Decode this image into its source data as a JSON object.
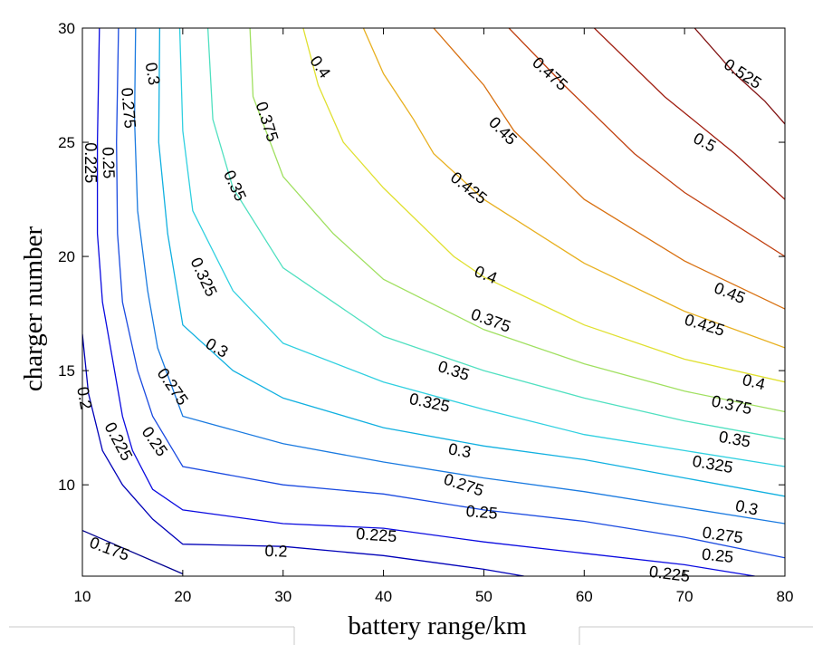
{
  "chart_data": {
    "type": "contour",
    "title": "",
    "xlabel": "battery range/km",
    "ylabel": "charger number",
    "xlim": [
      10,
      80
    ],
    "ylim": [
      6,
      30
    ],
    "xticks": [
      "10",
      "20",
      "30",
      "40",
      "50",
      "60",
      "70",
      "80"
    ],
    "yticks": [
      "10",
      "15",
      "20",
      "25",
      "30"
    ],
    "grid": false,
    "colormap": "jet",
    "contour_levels": [
      {
        "level": 0.175,
        "label": "0.175",
        "color": "#000090",
        "points": [
          [
            10,
            8
          ],
          [
            20,
            6.1
          ]
        ]
      },
      {
        "level": 0.2,
        "label": "0.2",
        "color": "#0000b8",
        "points": [
          [
            10,
            16.6
          ],
          [
            10.6,
            14
          ],
          [
            12,
            11.5
          ],
          [
            14,
            10
          ],
          [
            17,
            8.5
          ],
          [
            20,
            7.4
          ],
          [
            30,
            7.3
          ],
          [
            40,
            6.9
          ],
          [
            50,
            6.3
          ],
          [
            54,
            6.0
          ]
        ]
      },
      {
        "level": 0.225,
        "label": "0.225",
        "color": "#0a0ae0",
        "points": [
          [
            11.7,
            30
          ],
          [
            11.5,
            25
          ],
          [
            11.5,
            21
          ],
          [
            12,
            18
          ],
          [
            13,
            15.5
          ],
          [
            14,
            13
          ],
          [
            15,
            11.5
          ],
          [
            17,
            9.8
          ],
          [
            20,
            8.9
          ],
          [
            30,
            8.3
          ],
          [
            40,
            8.1
          ],
          [
            50,
            7.5
          ],
          [
            60,
            7
          ],
          [
            70,
            6.5
          ],
          [
            77,
            6
          ]
        ]
      },
      {
        "level": 0.25,
        "label": "0.25",
        "color": "#1a4ae0",
        "points": [
          [
            13.6,
            30
          ],
          [
            13.4,
            25
          ],
          [
            13.5,
            21
          ],
          [
            14,
            18
          ],
          [
            15.5,
            15
          ],
          [
            17,
            13
          ],
          [
            20,
            10.8
          ],
          [
            30,
            10
          ],
          [
            40,
            9.6
          ],
          [
            50,
            8.9
          ],
          [
            60,
            8.4
          ],
          [
            70,
            7.7
          ],
          [
            80,
            6.8
          ]
        ]
      },
      {
        "level": 0.275,
        "label": "0.275",
        "color": "#1a7ae0",
        "points": [
          [
            15.3,
            30
          ],
          [
            15.2,
            26
          ],
          [
            15.5,
            22
          ],
          [
            16.5,
            18.5
          ],
          [
            17.5,
            16
          ],
          [
            20,
            13
          ],
          [
            30,
            11.8
          ],
          [
            40,
            11
          ],
          [
            50,
            10.3
          ],
          [
            60,
            9.7
          ],
          [
            70,
            9
          ],
          [
            80,
            8.3
          ]
        ]
      },
      {
        "level": 0.3,
        "label": "0.3",
        "color": "#10b0e0",
        "points": [
          [
            17.7,
            30
          ],
          [
            17.6,
            25
          ],
          [
            18.5,
            21
          ],
          [
            20,
            17
          ],
          [
            25,
            15
          ],
          [
            30,
            13.8
          ],
          [
            40,
            12.5
          ],
          [
            50,
            11.7
          ],
          [
            60,
            11.1
          ],
          [
            70,
            10.3
          ],
          [
            80,
            9.5
          ]
        ]
      },
      {
        "level": 0.325,
        "label": "0.325",
        "color": "#30d0e0",
        "points": [
          [
            19.7,
            30
          ],
          [
            20,
            25.5
          ],
          [
            21,
            22
          ],
          [
            25,
            18.5
          ],
          [
            30,
            16.2
          ],
          [
            40,
            14.5
          ],
          [
            50,
            13.3
          ],
          [
            60,
            12.2
          ],
          [
            70,
            11.5
          ],
          [
            80,
            10.8
          ]
        ]
      },
      {
        "level": 0.35,
        "label": "0.35",
        "color": "#50e0c0",
        "points": [
          [
            22.5,
            30
          ],
          [
            23,
            26
          ],
          [
            25,
            23
          ],
          [
            30,
            19.5
          ],
          [
            40,
            16.5
          ],
          [
            50,
            15
          ],
          [
            60,
            13.8
          ],
          [
            70,
            12.8
          ],
          [
            80,
            12
          ]
        ]
      },
      {
        "level": 0.375,
        "label": "0.375",
        "color": "#a0e060",
        "points": [
          [
            26.7,
            30
          ],
          [
            27,
            27
          ],
          [
            30,
            23.5
          ],
          [
            35,
            21
          ],
          [
            40,
            19
          ],
          [
            50,
            16.8
          ],
          [
            60,
            15.3
          ],
          [
            70,
            14.1
          ],
          [
            80,
            13.2
          ]
        ]
      },
      {
        "level": 0.4,
        "label": "0.4",
        "color": "#e0e030",
        "points": [
          [
            32,
            30
          ],
          [
            33.5,
            27.5
          ],
          [
            36,
            25
          ],
          [
            40,
            23
          ],
          [
            47,
            20
          ],
          [
            50,
            19.1
          ],
          [
            60,
            17
          ],
          [
            70,
            15.5
          ],
          [
            80,
            14.5
          ]
        ]
      },
      {
        "level": 0.425,
        "label": "0.425",
        "color": "#e8b020",
        "points": [
          [
            38,
            30
          ],
          [
            40,
            28
          ],
          [
            43,
            26
          ],
          [
            45,
            24.5
          ],
          [
            50,
            22.5
          ],
          [
            60,
            19.7
          ],
          [
            70,
            17.6
          ],
          [
            80,
            16
          ]
        ]
      },
      {
        "level": 0.45,
        "label": "0.45",
        "color": "#d87010",
        "points": [
          [
            45,
            30
          ],
          [
            50,
            27.5
          ],
          [
            53,
            25.5
          ],
          [
            60,
            22.5
          ],
          [
            70,
            19.8
          ],
          [
            80,
            17.7
          ]
        ]
      },
      {
        "level": 0.475,
        "label": "0.475",
        "color": "#c04010",
        "points": [
          [
            52.5,
            30
          ],
          [
            58,
            27.5
          ],
          [
            65,
            24.5
          ],
          [
            70,
            22.8
          ],
          [
            80,
            20
          ]
        ]
      },
      {
        "level": 0.5,
        "label": "0.5",
        "color": "#a01e10",
        "points": [
          [
            61,
            30
          ],
          [
            68,
            27
          ],
          [
            75,
            24.5
          ],
          [
            80,
            22.5
          ]
        ]
      },
      {
        "level": 0.525,
        "label": "0.525",
        "color": "#801010",
        "points": [
          [
            71,
            30
          ],
          [
            75,
            28
          ],
          [
            78,
            26.8
          ],
          [
            80,
            25.8
          ]
        ]
      }
    ],
    "inline_labels": [
      {
        "text": "0.175",
        "x": 12.7,
        "y": 7.2,
        "angle": 20
      },
      {
        "text": "0.2",
        "x": 10.2,
        "y": 13.8,
        "angle": 80
      },
      {
        "text": "0.2",
        "x": 29.3,
        "y": 7.1,
        "angle": 2
      },
      {
        "text": "0.225",
        "x": 10.8,
        "y": 24.1,
        "angle": 90
      },
      {
        "text": "0.225",
        "x": 13.6,
        "y": 11.9,
        "angle": 62
      },
      {
        "text": "0.225",
        "x": 39.3,
        "y": 7.8,
        "angle": 4
      },
      {
        "text": "0.225",
        "x": 68.5,
        "y": 6.1,
        "angle": 7
      },
      {
        "text": "0.25",
        "x": 12.6,
        "y": 24.1,
        "angle": 88
      },
      {
        "text": "0.25",
        "x": 17.2,
        "y": 11.9,
        "angle": 55
      },
      {
        "text": "0.25",
        "x": 49.8,
        "y": 8.8,
        "angle": 5
      },
      {
        "text": "0.25",
        "x": 73.3,
        "y": 6.9,
        "angle": 6
      },
      {
        "text": "0.275",
        "x": 14.6,
        "y": 26.5,
        "angle": 85
      },
      {
        "text": "0.275",
        "x": 19.0,
        "y": 14.3,
        "angle": 55
      },
      {
        "text": "0.275",
        "x": 48.0,
        "y": 10.0,
        "angle": 18
      },
      {
        "text": "0.275",
        "x": 73.8,
        "y": 7.8,
        "angle": 8
      },
      {
        "text": "0.3",
        "x": 17.0,
        "y": 28.0,
        "angle": 80
      },
      {
        "text": "0.3",
        "x": 23.4,
        "y": 16.0,
        "angle": 30
      },
      {
        "text": "0.3",
        "x": 47.6,
        "y": 11.5,
        "angle": 10
      },
      {
        "text": "0.3",
        "x": 76.2,
        "y": 9.0,
        "angle": 12
      },
      {
        "text": "0.325",
        "x": 22.1,
        "y": 19.1,
        "angle": 65
      },
      {
        "text": "0.325",
        "x": 44.6,
        "y": 13.6,
        "angle": 12
      },
      {
        "text": "0.325",
        "x": 72.8,
        "y": 10.9,
        "angle": 10
      },
      {
        "text": "0.35",
        "x": 25.2,
        "y": 23.1,
        "angle": 65
      },
      {
        "text": "0.35",
        "x": 47.0,
        "y": 15.0,
        "angle": 18
      },
      {
        "text": "0.35",
        "x": 75.0,
        "y": 12.0,
        "angle": 10
      },
      {
        "text": "0.375",
        "x": 28.4,
        "y": 25.9,
        "angle": 72
      },
      {
        "text": "0.375",
        "x": 50.7,
        "y": 17.2,
        "angle": 20
      },
      {
        "text": "0.375",
        "x": 74.7,
        "y": 13.5,
        "angle": 12
      },
      {
        "text": "0.4",
        "x": 33.7,
        "y": 28.3,
        "angle": 55
      },
      {
        "text": "0.4",
        "x": 50.2,
        "y": 19.2,
        "angle": 22
      },
      {
        "text": "0.4",
        "x": 76.9,
        "y": 14.5,
        "angle": 14
      },
      {
        "text": "0.425",
        "x": 48.5,
        "y": 23.0,
        "angle": 38
      },
      {
        "text": "0.425",
        "x": 72.0,
        "y": 17.0,
        "angle": 17
      },
      {
        "text": "0.45",
        "x": 51.9,
        "y": 25.5,
        "angle": 45
      },
      {
        "text": "0.45",
        "x": 74.5,
        "y": 18.4,
        "angle": 22
      },
      {
        "text": "0.475",
        "x": 56.6,
        "y": 28.0,
        "angle": 42
      },
      {
        "text": "0.5",
        "x": 72.0,
        "y": 25.0,
        "angle": 28
      },
      {
        "text": "0.525",
        "x": 75.8,
        "y": 28.0,
        "angle": 33
      }
    ]
  }
}
